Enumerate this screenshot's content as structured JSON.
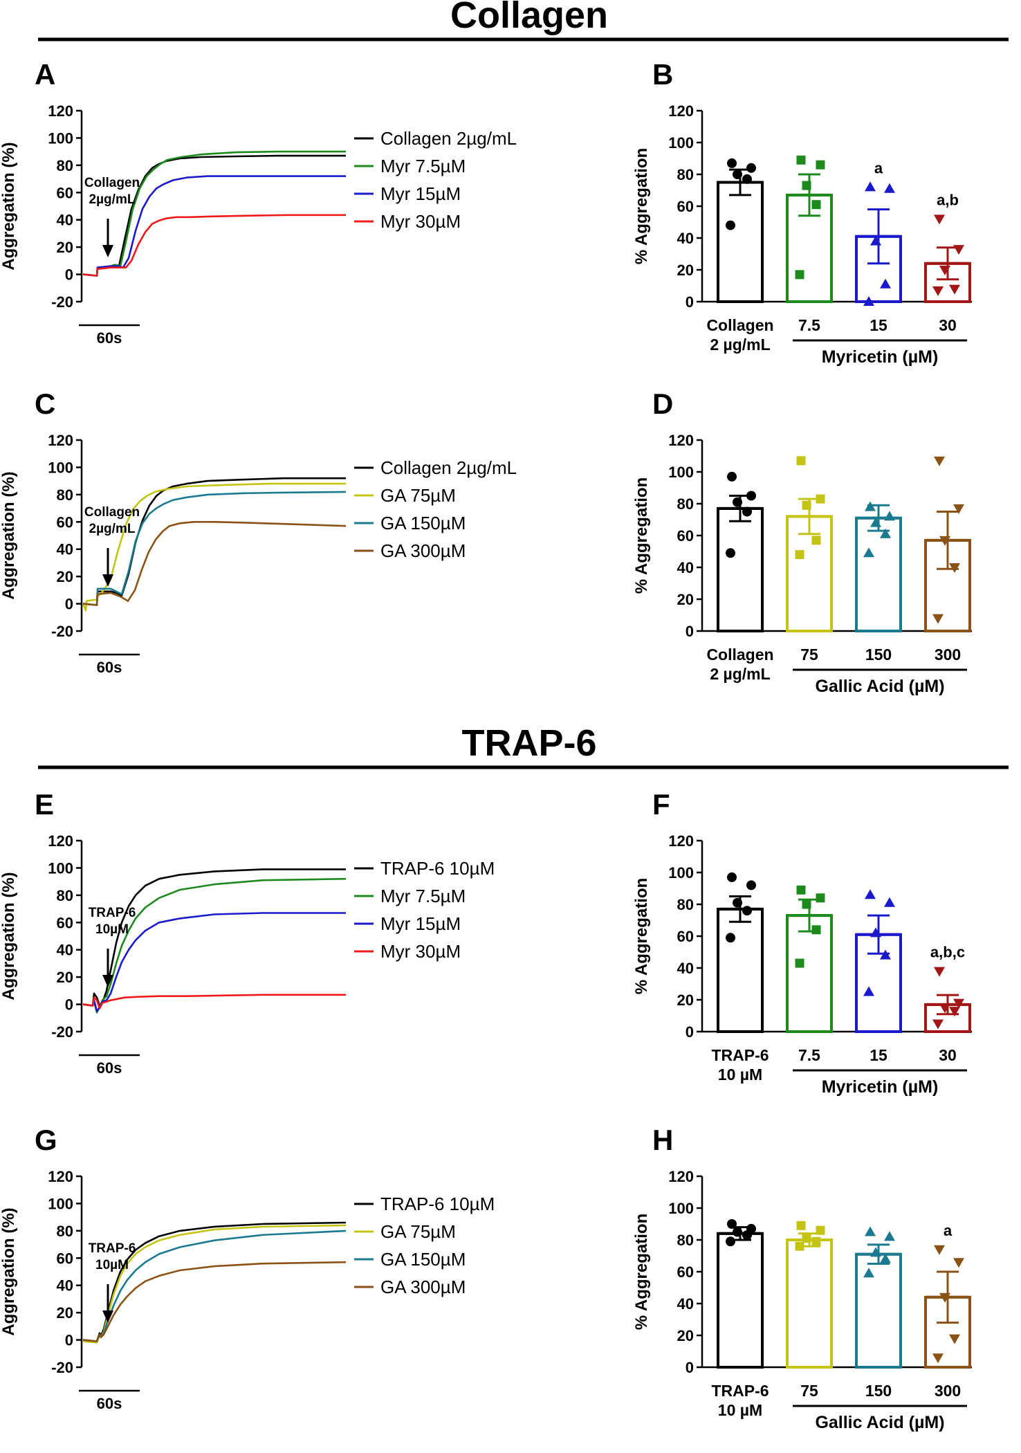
{
  "figure": {
    "sections": [
      {
        "title": "Collagen"
      },
      {
        "title": "TRAP-6"
      }
    ]
  },
  "chart_data": [
    {
      "panel": "A",
      "type": "line",
      "ylabel": "Aggregation (%)",
      "ylim": [
        -20,
        120
      ],
      "yticks": [
        -20,
        0,
        20,
        40,
        60,
        80,
        100,
        120
      ],
      "scale_label": "60s",
      "agonist": "Collagen\n2µg/mL",
      "series": [
        {
          "name": "Collagen 2µg/mL",
          "color": "#000000",
          "x": [
            0,
            20,
            21,
            40,
            46,
            52,
            60,
            70,
            80,
            90,
            100,
            110,
            120,
            140,
            170,
            220,
            280,
            380
          ],
          "y": [
            0,
            -1,
            5,
            6,
            7,
            6,
            25,
            48,
            62,
            72,
            78,
            81,
            83,
            85,
            86,
            86.5,
            87,
            87
          ]
        },
        {
          "name": "Myr 7.5µM",
          "color": "#1c8a1c",
          "x": [
            0,
            20,
            21,
            40,
            48,
            54,
            62,
            72,
            82,
            92,
            102,
            112,
            122,
            142,
            172,
            222,
            282,
            380
          ],
          "y": [
            0,
            -1,
            5,
            6,
            7,
            6,
            24,
            48,
            63,
            72,
            77,
            81,
            84,
            86,
            88,
            89.5,
            90,
            90
          ]
        },
        {
          "name": "Myr 15µM",
          "color": "#1a1acc",
          "x": [
            0,
            20,
            21,
            40,
            52,
            58,
            66,
            76,
            86,
            96,
            106,
            116,
            130,
            150,
            180,
            230,
            290,
            380
          ],
          "y": [
            0,
            -1,
            5,
            6,
            6,
            5,
            12,
            32,
            48,
            57,
            63,
            66,
            69,
            71,
            72,
            72,
            72,
            72
          ]
        },
        {
          "name": "Myr 30µM",
          "color": "#ee1a1a",
          "x": [
            0,
            20,
            21,
            40,
            55,
            62,
            70,
            80,
            90,
            100,
            110,
            120,
            135,
            155,
            185,
            235,
            295,
            380
          ],
          "y": [
            0,
            -1,
            4,
            5,
            5,
            5,
            10,
            22,
            31,
            37,
            39.5,
            41,
            42,
            42,
            42.5,
            43,
            43.5,
            43.5
          ]
        }
      ]
    },
    {
      "panel": "B",
      "type": "bar",
      "ylabel": "% Aggregation",
      "ylim": [
        0,
        120
      ],
      "yticks": [
        0,
        20,
        40,
        60,
        80,
        100,
        120
      ],
      "categories": [
        "Collagen\n2 µg/mL",
        "7.5",
        "15",
        "30"
      ],
      "group_label": "Myricetin (µM)",
      "means": [
        75,
        67,
        41,
        24
      ],
      "sem": [
        8,
        13,
        17,
        10
      ],
      "colors": [
        "#000000",
        "#1c8a1c",
        "#1a1acc",
        "#a31616"
      ],
      "markers": [
        "circle",
        "square",
        "triangle",
        "triangle-down"
      ],
      "points": [
        [
          48,
          77,
          80,
          84,
          87
        ],
        [
          17,
          61,
          73,
          86,
          89
        ],
        [
          0,
          11,
          38,
          71,
          72
        ],
        [
          7,
          8,
          20,
          33,
          52
        ]
      ],
      "sig_labels": [
        "",
        "",
        "a",
        "a,b"
      ]
    },
    {
      "panel": "C",
      "type": "line",
      "ylabel": "Aggregation (%)",
      "ylim": [
        -20,
        120
      ],
      "yticks": [
        -20,
        0,
        20,
        40,
        60,
        80,
        100,
        120
      ],
      "scale_label": "60s",
      "agonist": "Collagen\n2µg/mL",
      "series": [
        {
          "name": "Collagen 2µg/mL",
          "color": "#000000",
          "x": [
            0,
            20,
            21,
            40,
            48,
            56,
            66,
            76,
            86,
            96,
            106,
            116,
            130,
            150,
            180,
            230,
            290,
            380
          ],
          "y": [
            0,
            -1,
            9,
            9,
            8,
            6,
            22,
            45,
            61,
            72,
            79,
            83,
            86,
            88,
            90,
            91,
            92,
            92
          ]
        },
        {
          "name": "GA 75µM",
          "color": "#c4c414",
          "x": [
            0,
            4,
            5,
            20,
            21,
            30,
            40,
            50,
            62,
            72,
            82,
            92,
            104,
            120,
            150,
            200,
            270,
            380
          ],
          "y": [
            0,
            -5,
            2,
            3,
            5,
            10,
            18,
            38,
            58,
            69,
            75,
            79,
            82,
            84,
            86,
            87,
            88,
            88
          ]
        },
        {
          "name": "GA 150µM",
          "color": "#1a7a90",
          "x": [
            0,
            20,
            21,
            40,
            48,
            56,
            66,
            76,
            86,
            96,
            106,
            116,
            130,
            150,
            180,
            230,
            290,
            380
          ],
          "y": [
            0,
            -1,
            11,
            11,
            9,
            7,
            24,
            46,
            59,
            66,
            70,
            73,
            76,
            78,
            80,
            81,
            81.5,
            82
          ]
        },
        {
          "name": "GA 300µM",
          "color": "#8a5214",
          "x": [
            0,
            20,
            21,
            40,
            55,
            65,
            75,
            85,
            95,
            105,
            115,
            125,
            140,
            160,
            190,
            230,
            290,
            380
          ],
          "y": [
            0,
            -1,
            7,
            8,
            5,
            2,
            10,
            25,
            38,
            47,
            53,
            57,
            59,
            60,
            60,
            59.5,
            58.5,
            57
          ]
        }
      ]
    },
    {
      "panel": "D",
      "type": "bar",
      "ylabel": "% Aggregation",
      "ylim": [
        0,
        120
      ],
      "yticks": [
        0,
        20,
        40,
        60,
        80,
        100,
        120
      ],
      "categories": [
        "Collagen\n2 µg/mL",
        "75",
        "150",
        "300"
      ],
      "group_label": "Gallic Acid (µM)",
      "means": [
        77,
        72,
        71,
        57
      ],
      "sem": [
        8,
        11,
        8,
        18
      ],
      "colors": [
        "#000000",
        "#c4c414",
        "#1a7a90",
        "#8a5214"
      ],
      "markers": [
        "circle",
        "square",
        "triangle",
        "triangle-down"
      ],
      "points": [
        [
          49,
          75,
          81,
          85,
          97
        ],
        [
          48,
          57,
          79,
          83,
          107
        ],
        [
          49,
          61,
          68,
          72,
          78
        ],
        [
          8,
          40,
          57,
          77,
          107
        ]
      ],
      "sig_labels": [
        "",
        "",
        "",
        ""
      ]
    },
    {
      "panel": "E",
      "type": "line",
      "ylabel": "Aggregation (%)",
      "ylim": [
        -20,
        120
      ],
      "yticks": [
        -20,
        0,
        20,
        40,
        60,
        80,
        100,
        120
      ],
      "scale_label": "60s",
      "agonist": "TRAP-6\n10µM",
      "series": [
        {
          "name": "TRAP-6 10µM",
          "color": "#000000",
          "x": [
            0,
            14,
            16,
            20,
            24,
            28,
            34,
            40,
            48,
            56,
            66,
            76,
            90,
            110,
            140,
            190,
            260,
            380
          ],
          "y": [
            0,
            -1,
            8,
            5,
            -1,
            1,
            10,
            25,
            45,
            60,
            72,
            80,
            87,
            92,
            95,
            97.5,
            99,
            99
          ]
        },
        {
          "name": "Myr 7.5µM",
          "color": "#1c8a1c",
          "x": [
            0,
            14,
            16,
            20,
            24,
            28,
            34,
            40,
            48,
            56,
            66,
            76,
            90,
            110,
            140,
            190,
            260,
            380
          ],
          "y": [
            0,
            -1,
            2,
            -6,
            -2,
            3,
            6,
            15,
            30,
            43,
            54,
            63,
            71,
            78,
            84,
            88,
            91,
            92
          ]
        },
        {
          "name": "Myr 15µM",
          "color": "#1a1acc",
          "x": [
            0,
            14,
            16,
            20,
            24,
            28,
            34,
            40,
            48,
            56,
            66,
            76,
            90,
            110,
            140,
            190,
            260,
            380
          ],
          "y": [
            0,
            -1,
            3,
            -5,
            -2,
            2,
            3,
            8,
            20,
            31,
            40,
            47,
            54,
            60,
            63,
            66,
            67,
            67
          ]
        },
        {
          "name": "Myr 30µM",
          "color": "#ee1a1a",
          "x": [
            0,
            14,
            16,
            20,
            24,
            28,
            34,
            40,
            50,
            60,
            80,
            110,
            150,
            200,
            260,
            380
          ],
          "y": [
            0,
            -1,
            5,
            3,
            -3,
            1,
            2,
            3,
            4,
            5,
            5.5,
            6,
            6,
            6.5,
            7,
            7
          ]
        }
      ]
    },
    {
      "panel": "F",
      "type": "bar",
      "ylabel": "% Aggregation",
      "ylim": [
        0,
        120
      ],
      "yticks": [
        0,
        20,
        40,
        60,
        80,
        100,
        120
      ],
      "categories": [
        "TRAP-6\n10 µM",
        "7.5",
        "15",
        "30"
      ],
      "group_label": "Myricetin (µM)",
      "means": [
        77,
        73,
        61,
        17
      ],
      "sem": [
        8,
        10,
        12,
        6
      ],
      "colors": [
        "#000000",
        "#1c8a1c",
        "#1a1acc",
        "#a31616"
      ],
      "markers": [
        "circle",
        "square",
        "triangle",
        "triangle-down"
      ],
      "points": [
        [
          59,
          76,
          81,
          92,
          97
        ],
        [
          43,
          64,
          80,
          84,
          89
        ],
        [
          25,
          48,
          62,
          81,
          86
        ],
        [
          5,
          13,
          15,
          18,
          38
        ]
      ],
      "sig_labels": [
        "",
        "",
        "",
        "a,b,c"
      ]
    },
    {
      "panel": "G",
      "type": "line",
      "ylabel": "Aggregation (%)",
      "ylim": [
        -20,
        120
      ],
      "yticks": [
        -20,
        0,
        20,
        40,
        60,
        80,
        100,
        120
      ],
      "scale_label": "60s",
      "agonist": "TRAP-6\n10µM",
      "series": [
        {
          "name": "TRAP-6 10µM",
          "color": "#000000",
          "x": [
            0,
            20,
            24,
            26,
            30,
            36,
            44,
            54,
            64,
            76,
            90,
            110,
            140,
            190,
            260,
            380
          ],
          "y": [
            0,
            -1,
            5,
            3,
            8,
            20,
            36,
            50,
            59,
            66,
            71,
            76,
            80,
            83,
            85,
            86
          ]
        },
        {
          "name": "GA 75µM",
          "color": "#c4c414",
          "x": [
            0,
            20,
            24,
            26,
            30,
            36,
            44,
            54,
            64,
            76,
            90,
            110,
            140,
            190,
            260,
            380
          ],
          "y": [
            -1,
            -2,
            4,
            2,
            6,
            18,
            33,
            47,
            56,
            63,
            68,
            73,
            77,
            81,
            83,
            84
          ]
        },
        {
          "name": "GA 150µM",
          "color": "#1a7a90",
          "x": [
            0,
            20,
            24,
            26,
            30,
            36,
            44,
            54,
            64,
            76,
            90,
            110,
            140,
            190,
            260,
            380
          ],
          "y": [
            0,
            -1,
            4,
            2,
            5,
            14,
            25,
            36,
            44,
            51,
            57,
            63,
            68,
            73,
            77,
            80
          ]
        },
        {
          "name": "GA 300µM",
          "color": "#8a5214",
          "x": [
            0,
            20,
            24,
            26,
            30,
            36,
            44,
            54,
            64,
            76,
            90,
            110,
            140,
            190,
            260,
            380
          ],
          "y": [
            0,
            -1,
            4,
            2,
            4,
            10,
            18,
            26,
            32,
            38,
            43,
            47,
            51,
            54,
            56,
            57
          ]
        }
      ]
    },
    {
      "panel": "H",
      "type": "bar",
      "ylabel": "% Aggregation",
      "ylim": [
        0,
        120
      ],
      "yticks": [
        0,
        20,
        40,
        60,
        80,
        100,
        120
      ],
      "categories": [
        "TRAP-6\n10 µM",
        "75",
        "150",
        "300"
      ],
      "group_label": "Gallic Acid (µM)",
      "means": [
        84,
        80,
        71,
        44
      ],
      "sem": [
        4,
        4,
        6,
        16
      ],
      "colors": [
        "#000000",
        "#c4c414",
        "#1a7a90",
        "#8a5214"
      ],
      "markers": [
        "circle",
        "square",
        "triangle",
        "triangle-down"
      ],
      "points": [
        [
          79,
          83,
          85,
          87,
          90
        ],
        [
          76,
          79,
          81,
          86,
          89
        ],
        [
          59,
          68,
          72,
          82,
          85
        ],
        [
          6,
          18,
          44,
          66,
          74
        ]
      ],
      "sig_labels": [
        "",
        "",
        "",
        "a"
      ]
    }
  ]
}
